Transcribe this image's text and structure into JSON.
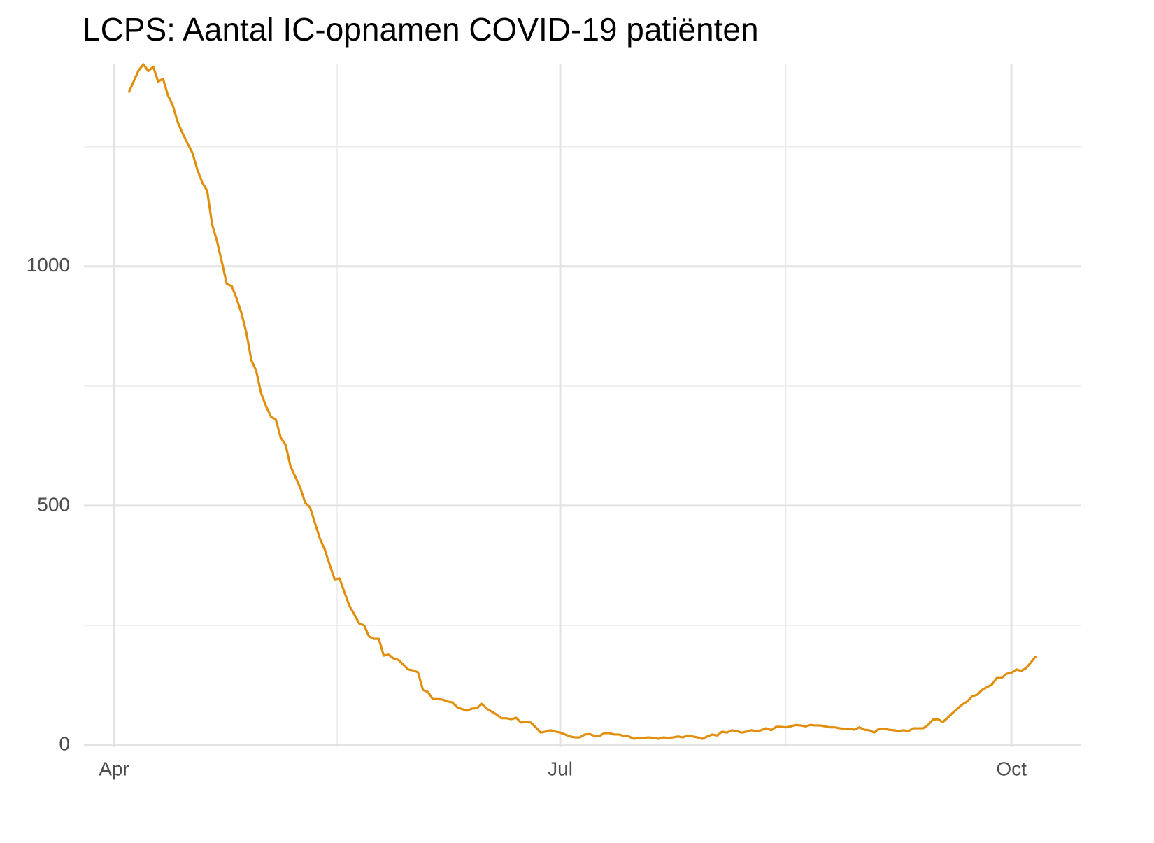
{
  "chart_data": {
    "type": "line",
    "title": "LCPS: Aantal IC-opnamen COVID-19 patiënten",
    "categories": [
      "Apr",
      null,
      null,
      null,
      null,
      null,
      null,
      null,
      null,
      null,
      null,
      null,
      null,
      null,
      null,
      null,
      null,
      null,
      null,
      null,
      null,
      null,
      null,
      null,
      null,
      null,
      null,
      null,
      null,
      null,
      null,
      null,
      null,
      null,
      null,
      null,
      null,
      null,
      null,
      null,
      null,
      null,
      null,
      null,
      null,
      null,
      null,
      null,
      null,
      null,
      null,
      null,
      null,
      null,
      null,
      null,
      null,
      null,
      null,
      null,
      null,
      null,
      null,
      null,
      null,
      null,
      null,
      null,
      null,
      null,
      null,
      null,
      null,
      null,
      null,
      null,
      null,
      null,
      null,
      null,
      null,
      null,
      null,
      null,
      null,
      null,
      null,
      null,
      null,
      null,
      null,
      "Jul",
      null,
      null,
      null,
      null,
      null,
      null,
      null,
      null,
      null,
      null,
      null,
      null,
      null,
      null,
      null,
      null,
      null,
      null,
      null,
      null,
      null,
      null,
      null,
      null,
      null,
      null,
      null,
      null,
      null,
      null,
      null,
      null,
      null,
      null,
      null,
      null,
      null,
      null,
      null,
      null,
      null,
      null,
      null,
      null,
      null,
      null,
      null,
      null,
      null,
      null,
      null,
      null,
      null,
      null,
      null,
      null,
      null,
      null,
      null,
      null,
      null,
      null,
      null,
      null,
      null,
      null,
      null,
      null,
      null,
      null,
      null,
      null,
      null,
      null,
      null,
      null,
      null,
      null,
      null,
      null,
      null,
      null,
      null,
      null,
      null,
      null,
      null,
      null,
      null,
      null,
      null,
      "Oct",
      null,
      null,
      null,
      null,
      null
    ],
    "series": [
      {
        "color": "#e08e0b",
        "values": [
          null,
          null,
          null,
          1363,
          1386,
          1409,
          1422,
          1408,
          1417,
          1386,
          1392,
          1357,
          1336,
          1301,
          1278,
          1257,
          1237,
          1202,
          1175,
          1158,
          1088,
          1053,
          1009,
          963,
          959,
          933,
          902,
          861,
          804,
          782,
          735,
          708,
          686,
          680,
          642,
          627,
          582,
          560,
          537,
          506,
          496,
          463,
          431,
          408,
          376,
          346,
          348,
          319,
          291,
          273,
          254,
          250,
          227,
          222,
          222,
          187,
          189,
          181,
          178,
          168,
          158,
          156,
          152,
          115,
          111,
          96,
          96,
          95,
          91,
          89,
          79,
          75,
          72,
          76,
          77,
          86,
          76,
          70,
          64,
          56,
          56,
          54,
          57,
          47,
          48,
          47,
          37,
          26,
          28,
          31,
          28,
          26,
          22,
          18,
          16,
          16,
          22,
          23,
          19,
          19,
          25,
          25,
          22,
          22,
          19,
          18,
          13,
          15,
          15,
          16,
          15,
          13,
          16,
          15,
          16,
          18,
          16,
          20,
          18,
          16,
          13,
          18,
          22,
          20,
          28,
          26,
          31,
          29,
          26,
          28,
          31,
          29,
          31,
          35,
          31,
          38,
          38,
          37,
          39,
          42,
          41,
          39,
          42,
          41,
          41,
          39,
          37,
          37,
          35,
          34,
          34,
          32,
          37,
          32,
          31,
          26,
          34,
          34,
          32,
          31,
          29,
          31,
          29,
          35,
          35,
          35,
          42,
          53,
          54,
          48,
          57,
          67,
          76,
          85,
          91,
          102,
          105,
          115,
          121,
          126,
          140,
          140,
          149,
          151,
          158,
          155,
          161,
          173,
          186
        ]
      }
    ],
    "ylim": [
      0,
      1422
    ],
    "yticks": [
      0,
      500,
      1000
    ],
    "minor_yticks": [
      250,
      750,
      1250
    ],
    "grid": true
  }
}
